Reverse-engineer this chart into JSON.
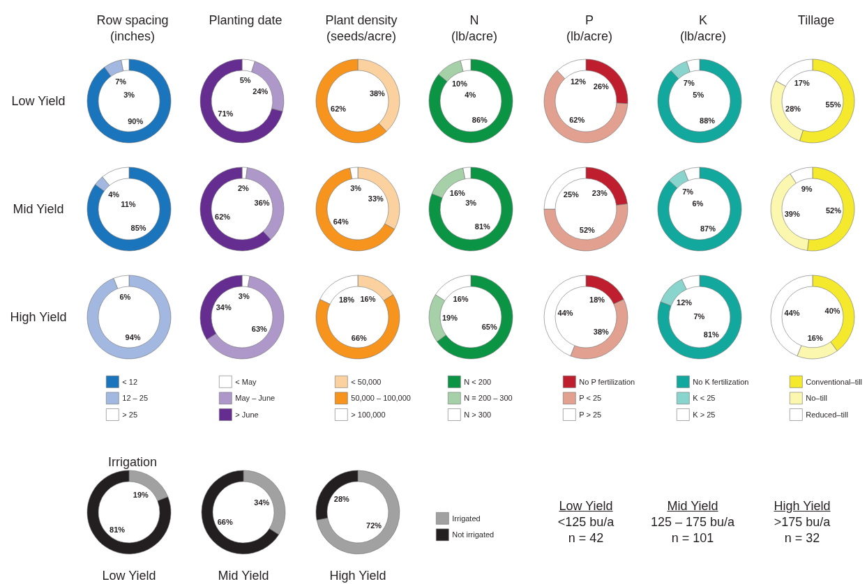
{
  "chart_data": [
    {
      "type": "donut",
      "title": "Row spacing\n(inches)",
      "categories": [
        "< 12",
        "12 – 25",
        "> 25"
      ],
      "colors": [
        "#1a75bc",
        "#a3b8e1",
        "#ffffff"
      ],
      "legend": "bottom",
      "series": [
        {
          "name": "Low Yield",
          "values": [
            90,
            7,
            3
          ],
          "value_labels": [
            "90%",
            "7%",
            "3%"
          ]
        },
        {
          "name": "Mid Yield",
          "values": [
            85,
            4,
            11
          ],
          "value_labels": [
            "85%",
            "4%",
            "11%"
          ]
        },
        {
          "name": "High Yield",
          "values": [
            null,
            94,
            6
          ],
          "value_labels": [
            null,
            "94%",
            "6%"
          ]
        }
      ]
    },
    {
      "type": "donut",
      "title": "Planting date",
      "categories": [
        "< May",
        "May – June",
        "> June"
      ],
      "colors": [
        "#ffffff",
        "#ae98ca",
        "#662d91"
      ],
      "legend": "bottom",
      "series": [
        {
          "values": [
            5,
            24,
            71
          ],
          "value_labels": [
            "5%",
            "24%",
            "71%"
          ]
        },
        {
          "values": [
            2,
            36,
            62
          ],
          "value_labels": [
            "2%",
            "36%",
            "62%"
          ]
        },
        {
          "values": [
            3,
            63,
            34
          ],
          "value_labels": [
            "3%",
            "63%",
            "34%"
          ]
        }
      ]
    },
    {
      "type": "donut",
      "title": "Plant density\n(seeds/acre)",
      "categories": [
        "< 50,000",
        "50,000 – 100,000",
        "> 100,000"
      ],
      "colors": [
        "#fbd29f",
        "#f7941d",
        "#ffffff"
      ],
      "legend": "bottom",
      "series": [
        {
          "values": [
            38,
            62,
            null
          ],
          "value_labels": [
            "38%",
            "62%",
            null
          ]
        },
        {
          "values": [
            33,
            64,
            3
          ],
          "value_labels": [
            "33%",
            "64%",
            "3%"
          ]
        },
        {
          "values": [
            16,
            66,
            18
          ],
          "value_labels": [
            "16%",
            "66%",
            "18%"
          ]
        }
      ]
    },
    {
      "type": "donut",
      "title": "N\n(lb/acre)",
      "categories": [
        "N < 200",
        "N = 200 – 300",
        "N > 300"
      ],
      "colors": [
        "#0b9444",
        "#a6d0a8",
        "#ffffff"
      ],
      "legend": "bottom",
      "series": [
        {
          "values": [
            86,
            10,
            4
          ],
          "value_labels": [
            "86%",
            "10%",
            "4%"
          ]
        },
        {
          "values": [
            81,
            16,
            3
          ],
          "value_labels": [
            "81%",
            "16%",
            "3%"
          ]
        },
        {
          "values": [
            65,
            19,
            16
          ],
          "value_labels": [
            "65%",
            "19%",
            "16%"
          ]
        }
      ]
    },
    {
      "type": "donut",
      "title": "P\n(lb/acre)",
      "categories": [
        "No P fertilization",
        "P < 25",
        "P > 25"
      ],
      "colors": [
        "#be1e2d",
        "#e2a090",
        "#ffffff"
      ],
      "legend": "bottom",
      "series": [
        {
          "values": [
            26,
            62,
            12
          ],
          "value_labels": [
            "26%",
            "62%",
            "12%"
          ]
        },
        {
          "values": [
            23,
            52,
            25
          ],
          "value_labels": [
            "23%",
            "52%",
            "25%"
          ]
        },
        {
          "values": [
            18,
            38,
            44
          ],
          "value_labels": [
            "18%",
            "38%",
            "44%"
          ]
        }
      ]
    },
    {
      "type": "donut",
      "title": "K\n(lb/acre)",
      "categories": [
        "No K fertilization",
        "K < 25",
        "K > 25"
      ],
      "colors": [
        "#13a89e",
        "#89d4cc",
        "#ffffff"
      ],
      "legend": "bottom",
      "series": [
        {
          "values": [
            88,
            7,
            5
          ],
          "value_labels": [
            "88%",
            "7%",
            "5%"
          ]
        },
        {
          "values": [
            87,
            7,
            6
          ],
          "value_labels": [
            "87%",
            "7%",
            "6%"
          ]
        },
        {
          "values": [
            81,
            12,
            7
          ],
          "value_labels": [
            "81%",
            "12%",
            "7%"
          ]
        }
      ]
    },
    {
      "type": "donut",
      "title": "Tillage",
      "categories": [
        "Conventional–till",
        "No–till",
        "Reduced–till"
      ],
      "colors": [
        "#f4e92c",
        "#fcf7ae",
        "#ffffff"
      ],
      "legend": "bottom",
      "series": [
        {
          "values": [
            55,
            28,
            17
          ],
          "value_labels": [
            "55%",
            "28%",
            "17%"
          ]
        },
        {
          "values": [
            52,
            39,
            9
          ],
          "value_labels": [
            "52%",
            "39%",
            "9%"
          ]
        },
        {
          "values": [
            40,
            16,
            44
          ],
          "value_labels": [
            "40%",
            "16%",
            "44%"
          ]
        }
      ]
    },
    {
      "type": "donut",
      "title": "Irrigation",
      "categories": [
        "Irrigated",
        "Not irrigated"
      ],
      "colors": [
        "#a1a1a1",
        "#231f20"
      ],
      "legend": "right",
      "series": [
        {
          "name": "Low Yield",
          "values": [
            19,
            81
          ],
          "value_labels": [
            "19%",
            "81%"
          ]
        },
        {
          "name": "Mid Yield",
          "values": [
            34,
            66
          ],
          "value_labels": [
            "34%",
            "66%"
          ]
        },
        {
          "name": "High Yield",
          "values": [
            72,
            28
          ],
          "value_labels": [
            "72%",
            "28%"
          ]
        }
      ],
      "annotations": [
        "Low Yield\n<125 bu/a\nn = 42",
        "Mid Yield\n125 – 175 bu/a\nn = 101",
        "High Yield\n>175 bu/a\nn = 32"
      ]
    }
  ]
}
